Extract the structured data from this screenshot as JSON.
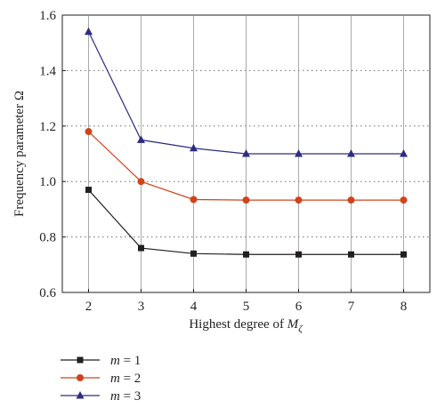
{
  "chart_data": {
    "type": "line",
    "xlabel": {
      "prefix": "Highest degree of ",
      "symbol": "M",
      "subscript": "ζ"
    },
    "ylabel": "Frequency parameter Ω",
    "x": [
      2,
      3,
      4,
      5,
      6,
      7,
      8
    ],
    "xticks": [
      "2",
      "3",
      "4",
      "5",
      "6",
      "7",
      "8"
    ],
    "xlim": [
      1.5,
      8.5
    ],
    "ylim": [
      0.6,
      1.6
    ],
    "yticks": [
      "0.6",
      "0.8",
      "1.0",
      "1.2",
      "1.4",
      "1.6"
    ],
    "grid": "dotted horizontal",
    "legend_position": "bottom-left",
    "series": [
      {
        "name": "m = 1",
        "legend_var": "m",
        "legend_rest": " = 1",
        "marker": "square",
        "color": "#231f20",
        "values": [
          0.97,
          0.76,
          0.74,
          0.737,
          0.737,
          0.737,
          0.737
        ]
      },
      {
        "name": "m = 2",
        "legend_var": "m",
        "legend_rest": " = 2",
        "marker": "circle",
        "color": "#d0441c",
        "values": [
          1.18,
          1.0,
          0.935,
          0.933,
          0.933,
          0.933,
          0.933
        ]
      },
      {
        "name": "m = 3",
        "legend_var": "m",
        "legend_rest": " = 3",
        "marker": "triangle",
        "color": "#2e2c80",
        "values": [
          1.54,
          1.15,
          1.12,
          1.1,
          1.1,
          1.1,
          1.1
        ]
      }
    ]
  }
}
